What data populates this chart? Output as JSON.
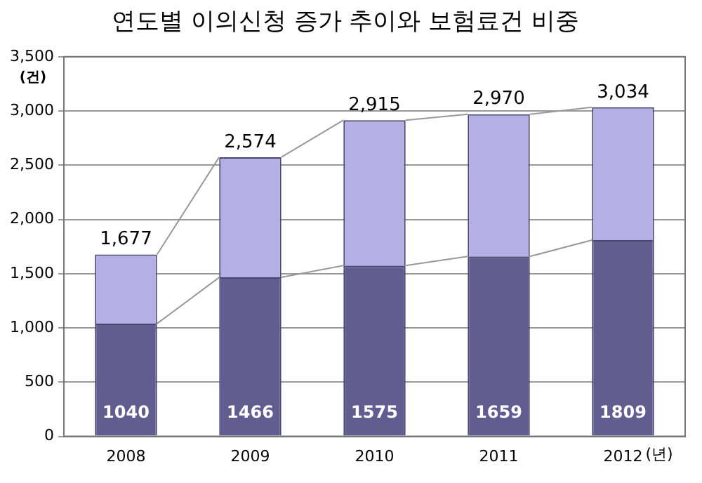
{
  "chart_data": {
    "type": "bar",
    "title": "연도별 이의신청 증가 추이와 보험료건 비중",
    "categories": [
      "2008",
      "2009",
      "2010",
      "2011",
      "2012"
    ],
    "stacked": true,
    "series": [
      {
        "color": "#615d91",
        "values": [
          1040,
          1466,
          1575,
          1659,
          1809
        ],
        "value_labels": [
          "1040",
          "1466",
          "1575",
          "1659",
          "1809"
        ]
      },
      {
        "color": "#b4b0e6",
        "values": [
          637,
          1108,
          1340,
          1311,
          1225
        ]
      }
    ],
    "totals": [
      "1,677",
      "2,574",
      "2,915",
      "2,970",
      "3,034"
    ],
    "ylim": [
      0,
      3500
    ],
    "yticks": [
      {
        "value": 0,
        "label": "0"
      },
      {
        "value": 500,
        "label": "500"
      },
      {
        "value": 1000,
        "label": "1,000"
      },
      {
        "value": 1500,
        "label": "1,500"
      },
      {
        "value": 2000,
        "label": "2,000"
      },
      {
        "value": 2500,
        "label": "2,500"
      },
      {
        "value": 3000,
        "label": "3,000"
      },
      {
        "value": 3500,
        "label": "3,500"
      }
    ],
    "ylabel": "(건)",
    "xlabel": "(년)",
    "grid": "y",
    "legend": false
  }
}
